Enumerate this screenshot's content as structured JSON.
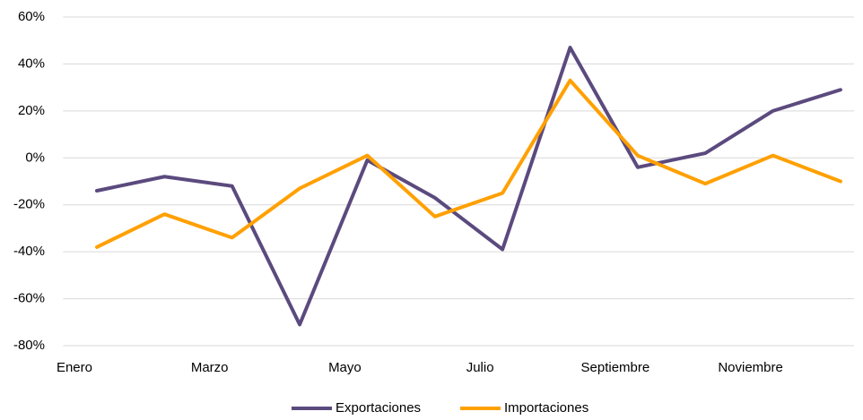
{
  "chart_data": {
    "type": "line",
    "categories": [
      "Enero",
      null,
      "Marzo",
      null,
      "Mayo",
      null,
      "Julio",
      null,
      "Septiembre",
      null,
      "Noviembre",
      null
    ],
    "series": [
      {
        "name": "Exportaciones",
        "color": "#5b4a7e",
        "values": [
          -14,
          -8,
          -12,
          -71,
          -1,
          -17,
          -39,
          47,
          -4,
          2,
          20,
          29
        ]
      },
      {
        "name": "Importaciones",
        "color": "#ffa000",
        "values": [
          -38,
          -24,
          -34,
          -13,
          1,
          -25,
          -15,
          33,
          1,
          -11,
          1,
          -10
        ]
      }
    ],
    "ylim": [
      -80,
      60
    ],
    "yticks": [
      {
        "value": -80,
        "label": "-80%"
      },
      {
        "value": -60,
        "label": "-60%"
      },
      {
        "value": -40,
        "label": "-40%"
      },
      {
        "value": -20,
        "label": "-20%"
      },
      {
        "value": 0,
        "label": "0%"
      },
      {
        "value": 20,
        "label": "20%"
      },
      {
        "value": 40,
        "label": "40%"
      },
      {
        "value": 60,
        "label": "60%"
      }
    ],
    "grid": true,
    "legend": "bottom"
  }
}
